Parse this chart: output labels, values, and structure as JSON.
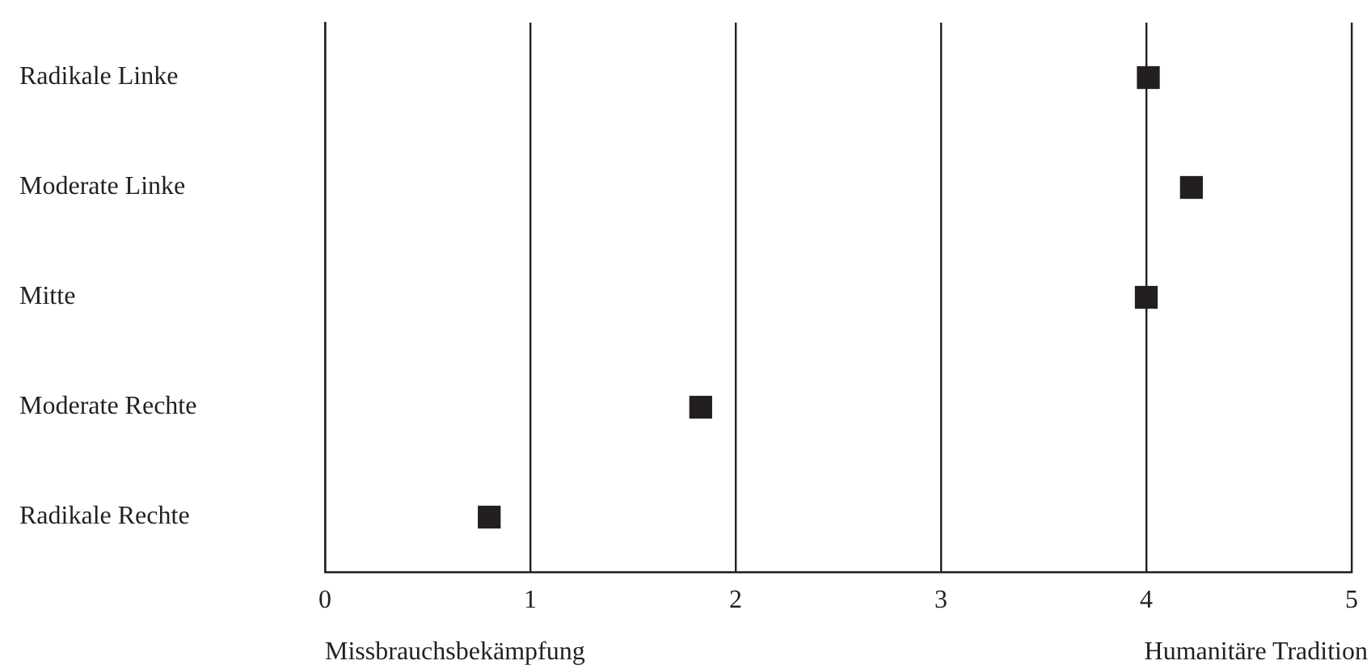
{
  "chart_data": {
    "type": "scatter",
    "categories": [
      "Radikale Linke",
      "Moderate Linke",
      "Mitte",
      "Moderate Rechte",
      "Radikale Rechte"
    ],
    "series": [
      {
        "color": "#231f20",
        "values": [
          4.01,
          4.22,
          4.0,
          1.83,
          0.8
        ]
      }
    ],
    "orientation": "horizontal",
    "xlim": [
      0,
      5
    ],
    "xticks": [
      0,
      1,
      2,
      3,
      4,
      5
    ],
    "grid": "x",
    "legend": false,
    "marker": "square",
    "annotations": [
      "Missbrauchsbekämpfung",
      "Humanitäre Tradition"
    ]
  }
}
